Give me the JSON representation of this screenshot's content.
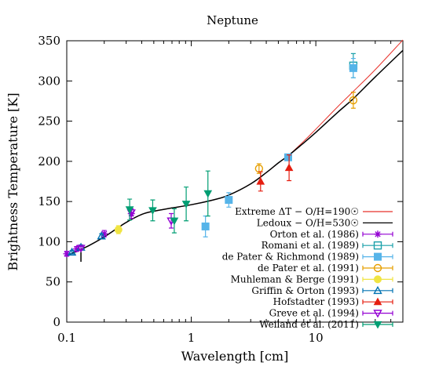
{
  "chart_data": {
    "type": "scatter",
    "title": "Neptune",
    "xlabel": "Wavelength [cm]",
    "ylabel": "Brightness Temperature [K]",
    "xscale": "log",
    "xlim": [
      0.1,
      50
    ],
    "ylim": [
      0,
      350
    ],
    "xticks": [
      0.1,
      1,
      10
    ],
    "xtick_labels": [
      "0.1",
      "1",
      "10"
    ],
    "yticks": [
      0,
      50,
      100,
      150,
      200,
      250,
      300,
      350
    ],
    "ytick_labels": [
      "0",
      "50",
      "100",
      "150",
      "200",
      "250",
      "300",
      "350"
    ],
    "grid": false,
    "legend_position": "bottom-right",
    "models": [
      {
        "name": "Extreme ΔT − O/H=190☉",
        "color": "#e8312a",
        "x": [
          0.1,
          0.12,
          0.15,
          0.2,
          0.25,
          0.3,
          0.4,
          0.5,
          0.7,
          1,
          1.5,
          2,
          3,
          4,
          5,
          6,
          8,
          10,
          15,
          20,
          30,
          50
        ],
        "y": [
          83,
          88,
          95,
          106,
          116,
          124,
          134,
          138,
          142,
          146,
          152,
          158,
          172,
          186,
          198,
          207,
          225,
          240,
          268,
          287,
          314,
          351
        ]
      },
      {
        "name": "Ledoux − O/H=530☉",
        "color": "#000000",
        "x": [
          0.1,
          0.12,
          0.15,
          0.2,
          0.25,
          0.3,
          0.4,
          0.5,
          0.7,
          1,
          1.5,
          2,
          3,
          4,
          5,
          6,
          8,
          10,
          15,
          20,
          30,
          50
        ],
        "y": [
          83,
          88,
          95,
          106,
          116,
          124,
          134,
          138,
          142,
          146,
          152,
          158,
          172,
          186,
          198,
          207,
          223,
          236,
          261,
          278,
          305,
          338
        ]
      }
    ],
    "series": [
      {
        "name": "Orton et al. (1986)",
        "color": "#9400d3",
        "marker": "asterisk",
        "points": [
          {
            "x": 0.1,
            "y": 85,
            "err": 3
          },
          {
            "x": 0.12,
            "y": 91,
            "err": 3
          },
          {
            "x": 0.2,
            "y": 110,
            "err": 4
          },
          {
            "x": 0.33,
            "y": 135,
            "err": 6
          }
        ]
      },
      {
        "name": "Romani et al. (1989)",
        "color": "#1ba1aa",
        "marker": "square-open",
        "points": [
          {
            "x": 20,
            "y": 319,
            "err": 15
          }
        ]
      },
      {
        "name": "de Pater & Richmond (1989)",
        "color": "#56b4e9",
        "marker": "square-filled",
        "points": [
          {
            "x": 1.3,
            "y": 119,
            "err": 13
          },
          {
            "x": 2,
            "y": 152,
            "err": 9
          },
          {
            "x": 6,
            "y": 205,
            "err": 1
          },
          {
            "x": 20,
            "y": 316,
            "err": 12
          }
        ]
      },
      {
        "name": "de Pater et al. (1991)",
        "color": "#e69f00",
        "marker": "circle-open",
        "points": [
          {
            "x": 3.5,
            "y": 191,
            "err": 6
          },
          {
            "x": 20,
            "y": 276,
            "err": 10
          }
        ]
      },
      {
        "name": "Muhleman & Berge (1991)",
        "color": "#f0e442",
        "marker": "circle-filled",
        "points": [
          {
            "x": 0.26,
            "y": 115,
            "err": 5
          }
        ]
      },
      {
        "name": "Griffin & Orton (1993)",
        "color": "#0072b2",
        "marker": "triangle-open",
        "points": [
          {
            "x": 0.11,
            "y": 87,
            "err": 2
          },
          {
            "x": 0.13,
            "y": 93,
            "err": 3
          },
          {
            "x": 0.19,
            "y": 107,
            "err": 3
          }
        ]
      },
      {
        "name": "Hofstadter (1993)",
        "color": "#e51e10",
        "marker": "triangle-filled",
        "points": [
          {
            "x": 3.6,
            "y": 175,
            "err": 12
          },
          {
            "x": 6.1,
            "y": 192,
            "err": 16
          }
        ]
      },
      {
        "name": "Greve et al. (1994)",
        "color": "#9400d3",
        "marker": "triangle-down-open",
        "points": [
          {
            "x": 0.13,
            "y": 92,
            "err": 2
          },
          {
            "x": 0.33,
            "y": 136,
            "err": 4
          },
          {
            "x": 0.69,
            "y": 126,
            "err": 9
          }
        ]
      },
      {
        "name": "Weiland et al. (2011)",
        "color": "#009e73",
        "marker": "triangle-down-filled",
        "points": [
          {
            "x": 0.32,
            "y": 140,
            "err": 13
          },
          {
            "x": 0.49,
            "y": 139,
            "err": 13
          },
          {
            "x": 0.73,
            "y": 126,
            "err": 15
          },
          {
            "x": 0.91,
            "y": 147,
            "err": 21
          },
          {
            "x": 1.36,
            "y": 160,
            "err": 28
          }
        ]
      }
    ],
    "extra_marks": [
      {
        "x": 0.13,
        "y": 81,
        "err": 6,
        "color": "#000000"
      }
    ]
  }
}
